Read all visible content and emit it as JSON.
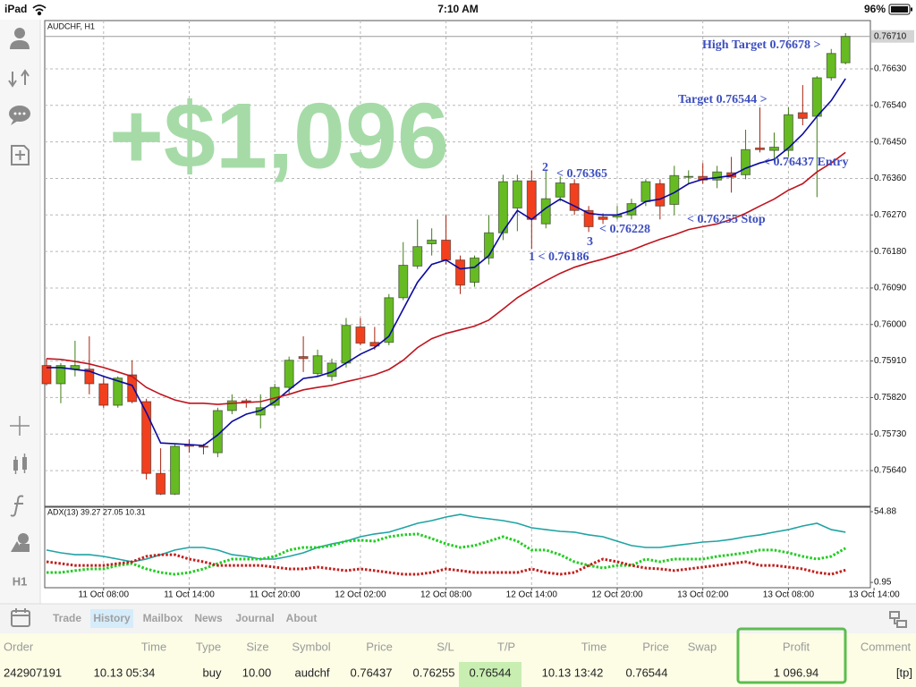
{
  "status_bar": {
    "device": "iPad",
    "time": "7:10 AM",
    "battery": "96%"
  },
  "sidebar": {
    "timeframe": "H1"
  },
  "profit_overlay": "+$1,096",
  "chart_data": [
    {
      "type": "candlestick",
      "title": "AUDCHF, H1",
      "up_color": "#66bb22",
      "down_color": "#f2401e",
      "open": [
        0.75899,
        0.75854,
        0.7589,
        0.7589,
        0.75854,
        0.75801,
        0.75876,
        0.7581,
        0.75633,
        0.75582,
        0.75704,
        0.757,
        0.75684,
        0.75788,
        0.75812,
        0.75777,
        0.75801,
        0.75845,
        0.75921,
        0.75879,
        0.75872,
        0.75905,
        0.75994,
        0.75956,
        0.75956,
        0.76066,
        0.76144,
        0.76199,
        0.76208,
        0.76159,
        0.76104,
        0.76164,
        0.76226,
        0.76287,
        0.76354,
        0.76248,
        0.76314,
        0.76347,
        0.76281,
        0.76265,
        0.76265,
        0.7627,
        0.76303,
        0.76347,
        0.76296,
        0.76365,
        0.76365,
        0.76356,
        0.76374,
        0.76369,
        0.76435,
        0.76429,
        0.76429,
        0.76522,
        0.76513,
        0.76608,
        0.76645
      ],
      "high": [
        0.75916,
        0.75905,
        0.7596,
        0.75971,
        0.75872,
        0.75872,
        0.75912,
        0.75817,
        0.75695,
        0.75706,
        0.75717,
        0.75706,
        0.75795,
        0.75828,
        0.75817,
        0.75828,
        0.75854,
        0.75921,
        0.75971,
        0.75938,
        0.75916,
        0.76016,
        0.76016,
        0.75994,
        0.76075,
        0.76203,
        0.76259,
        0.76237,
        0.7627,
        0.7617,
        0.7617,
        0.7627,
        0.76369,
        0.76369,
        0.7638,
        0.7638,
        0.76365,
        0.76358,
        0.76292,
        0.76274,
        0.76292,
        0.7631,
        0.76358,
        0.76358,
        0.76391,
        0.7638,
        0.76398,
        0.76391,
        0.76413,
        0.7648,
        0.76535,
        0.76473,
        0.76535,
        0.7659,
        0.76612,
        0.76679,
        0.76718
      ],
      "low": [
        0.7585,
        0.75806,
        0.75872,
        0.75828,
        0.75795,
        0.75795,
        0.75806,
        0.75618,
        0.7558,
        0.7558,
        0.75684,
        0.7568,
        0.75673,
        0.75779,
        0.75795,
        0.75744,
        0.75795,
        0.75828,
        0.75883,
        0.75872,
        0.75861,
        0.75894,
        0.75949,
        0.75938,
        0.75949,
        0.7606,
        0.76137,
        0.7617,
        0.76148,
        0.76075,
        0.76093,
        0.76148,
        0.76208,
        0.7623,
        0.76186,
        0.76237,
        0.76303,
        0.7627,
        0.76228,
        0.76248,
        0.76259,
        0.76259,
        0.76292,
        0.76259,
        0.7627,
        0.76347,
        0.76347,
        0.76336,
        0.76325,
        0.76358,
        0.76424,
        0.76402,
        0.76413,
        0.76491,
        0.76314,
        0.76601,
        0.76641
      ],
      "close": [
        0.75854,
        0.75899,
        0.75899,
        0.75854,
        0.75801,
        0.75868,
        0.7581,
        0.75633,
        0.75582,
        0.757,
        0.757,
        0.75698,
        0.75788,
        0.75812,
        0.75808,
        0.75795,
        0.75845,
        0.75912,
        0.75916,
        0.75923,
        0.75905,
        0.75998,
        0.75954,
        0.75947,
        0.76066,
        0.76146,
        0.76192,
        0.76208,
        0.76159,
        0.76097,
        0.76164,
        0.76226,
        0.76352,
        0.76354,
        0.76259,
        0.7631,
        0.76349,
        0.76281,
        0.76241,
        0.76259,
        0.7627,
        0.76298,
        0.76352,
        0.76292,
        0.76367,
        0.76365,
        0.76356,
        0.76376,
        0.76363,
        0.76431,
        0.76431,
        0.76437,
        0.76517,
        0.76508,
        0.76608,
        0.76668,
        0.7671
      ],
      "lines": [
        {
          "color": "#0a0aa0",
          "values": [
            0.75894,
            0.75894,
            0.75889,
            0.75885,
            0.75872,
            0.75861,
            0.7585,
            0.75783,
            0.75708,
            0.75706,
            0.75704,
            0.75702,
            0.75728,
            0.75761,
            0.75779,
            0.75788,
            0.7581,
            0.75839,
            0.75867,
            0.75872,
            0.75883,
            0.75905,
            0.75927,
            0.75943,
            0.75971,
            0.76038,
            0.76104,
            0.76148,
            0.76159,
            0.76137,
            0.76141,
            0.7617,
            0.7623,
            0.76281,
            0.76259,
            0.76287,
            0.76309,
            0.76292,
            0.76274,
            0.7627,
            0.7627,
            0.76281,
            0.76303,
            0.76309,
            0.76325,
            0.76347,
            0.76358,
            0.76362,
            0.76367,
            0.76385,
            0.76398,
            0.76407,
            0.76435,
            0.76469,
            0.76513,
            0.76552,
            0.76606
          ]
        },
        {
          "color": "#c0141e",
          "values": [
            0.75916,
            0.75914,
            0.75909,
            0.75903,
            0.75894,
            0.75883,
            0.75872,
            0.75845,
            0.75828,
            0.75814,
            0.75806,
            0.75806,
            0.75803,
            0.75806,
            0.75808,
            0.7581,
            0.75819,
            0.75828,
            0.75839,
            0.75845,
            0.7585,
            0.75859,
            0.75867,
            0.75876,
            0.75889,
            0.75912,
            0.75943,
            0.75965,
            0.75978,
            0.75987,
            0.75996,
            0.76011,
            0.76038,
            0.76066,
            0.76088,
            0.76108,
            0.76126,
            0.76141,
            0.76152,
            0.76161,
            0.76172,
            0.76183,
            0.76197,
            0.7621,
            0.76221,
            0.76234,
            0.76241,
            0.76248,
            0.76259,
            0.76274,
            0.76292,
            0.76309,
            0.76331,
            0.76347,
            0.76376,
            0.76398,
            0.76424
          ]
        }
      ],
      "ylim": [
        0.75552,
        0.76749
      ],
      "yticks": [
        {
          "value": 0.7564,
          "label": "0.75640"
        },
        {
          "value": 0.7573,
          "label": "0.75730"
        },
        {
          "value": 0.7582,
          "label": "0.75820"
        },
        {
          "value": 0.7591,
          "label": "0.75910"
        },
        {
          "value": 0.76,
          "label": "0.76000"
        },
        {
          "value": 0.7609,
          "label": "0.76090"
        },
        {
          "value": 0.7618,
          "label": "0.76180"
        },
        {
          "value": 0.7627,
          "label": "0.76270"
        },
        {
          "value": 0.7636,
          "label": "0.76360"
        },
        {
          "value": 0.7645,
          "label": "0.76450"
        },
        {
          "value": 0.7654,
          "label": "0.76540"
        },
        {
          "value": 0.7663,
          "label": "0.76630"
        }
      ],
      "last_price": {
        "value": 0.7671,
        "label": "0.76710"
      },
      "xticks": [
        {
          "value": 4,
          "label": "11 Oct 08:00"
        },
        {
          "value": 10,
          "label": "11 Oct 14:00"
        },
        {
          "value": 16,
          "label": "11 Oct 20:00"
        },
        {
          "value": 22,
          "label": "12 Oct 02:00"
        },
        {
          "value": 28,
          "label": "12 Oct 08:00"
        },
        {
          "value": 34,
          "label": "12 Oct 14:00"
        },
        {
          "value": 40,
          "label": "12 Oct 20:00"
        },
        {
          "value": 46,
          "label": "13 Oct 02:00"
        },
        {
          "value": 52,
          "label": "13 Oct 08:00"
        },
        {
          "value": 58,
          "label": "13 Oct 14:00"
        }
      ],
      "grid": true,
      "annotations": [
        "High Target 0.76678 >",
        "Target 0.76544 >",
        "< 0.76437 Entry",
        "< 0.76255 Stop",
        "2",
        "< 0.76365",
        "3",
        "< 0.76228",
        "1 < 0.76186"
      ]
    },
    {
      "type": "line",
      "title": "ADX(13) 39.27 27.05 10.31",
      "ylim": [
        -3.1,
        58.3
      ],
      "yticks": [
        54.88,
        0.95
      ],
      "series": [
        {
          "color": "#1fa3a3",
          "style": "solid",
          "values": [
            25.6,
            23.5,
            22.1,
            22.1,
            20.8,
            18.7,
            16.7,
            18.7,
            22.1,
            25.6,
            27.6,
            27.6,
            25.6,
            22.1,
            20.8,
            18.7,
            18.7,
            20.8,
            23.5,
            27.6,
            30.3,
            32.4,
            35.8,
            37.9,
            39.3,
            42.6,
            46.0,
            48.1,
            50.8,
            52.8,
            50.8,
            49.4,
            48.1,
            46.0,
            42.6,
            41.2,
            39.9,
            39.3,
            37.2,
            35.8,
            32.4,
            29.0,
            27.6,
            27.6,
            29.0,
            30.3,
            31.7,
            32.4,
            33.8,
            35.8,
            37.2,
            39.3,
            41.2,
            44.0,
            46.0,
            41.2,
            39.27
          ]
        },
        {
          "color": "#22cc22",
          "style": "dotted",
          "values": [
            8.5,
            8.5,
            9.9,
            11.2,
            11.2,
            13.9,
            15.3,
            11.2,
            8.5,
            7.1,
            8.5,
            11.2,
            15.3,
            18.7,
            18.7,
            18.7,
            20.8,
            25.6,
            27.6,
            27.6,
            29.0,
            32.4,
            33.1,
            32.4,
            35.8,
            37.2,
            37.9,
            34.4,
            30.3,
            27.6,
            29.0,
            32.4,
            35.8,
            32.4,
            25.6,
            25.6,
            22.1,
            16.7,
            13.9,
            11.9,
            13.9,
            13.9,
            18.7,
            16.7,
            18.7,
            18.7,
            18.7,
            20.8,
            22.1,
            23.5,
            25.6,
            25.6,
            23.5,
            20.8,
            18.7,
            20.8,
            27.05
          ]
        },
        {
          "color": "#c0201e",
          "style": "dotted",
          "values": [
            16.7,
            15.3,
            13.9,
            13.9,
            13.9,
            15.3,
            16.7,
            20.8,
            22.1,
            22.1,
            18.7,
            16.7,
            13.9,
            13.9,
            13.9,
            13.9,
            12.6,
            11.2,
            11.2,
            12.6,
            11.2,
            9.9,
            11.2,
            9.9,
            8.5,
            7.1,
            7.1,
            8.5,
            11.2,
            9.9,
            8.5,
            8.5,
            8.5,
            8.5,
            11.2,
            8.5,
            7.1,
            8.5,
            13.9,
            18.7,
            16.7,
            13.9,
            11.9,
            11.2,
            9.9,
            11.2,
            12.6,
            13.9,
            15.3,
            16.7,
            13.9,
            13.9,
            12.6,
            11.2,
            8.5,
            7.1,
            10.31
          ]
        }
      ]
    }
  ],
  "tabs": {
    "items": [
      "Trade",
      "History",
      "Mailbox",
      "News",
      "Journal",
      "About"
    ],
    "active": "History"
  },
  "table": {
    "headers": [
      "Order",
      "Time",
      "Type",
      "Size",
      "Symbol",
      "Price",
      "S/L",
      "T/P",
      "Time",
      "Price",
      "Swap",
      "Profit",
      "Comment"
    ],
    "rows": [
      [
        "242907191",
        "10.13 05:34",
        "buy",
        "10.00",
        "audchf",
        "0.76437",
        "0.76255",
        "0.76544",
        "10.13 13:42",
        "0.76544",
        null,
        "1 096.94",
        "[tp]"
      ]
    ]
  }
}
